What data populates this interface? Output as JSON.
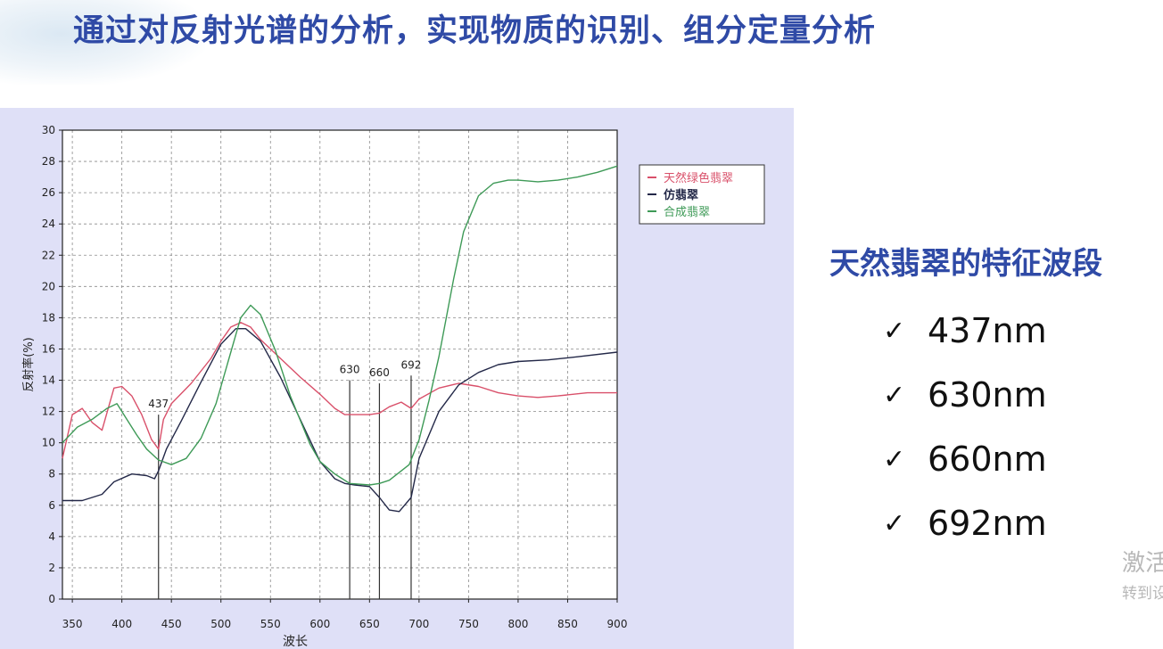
{
  "slide": {
    "title": "通过对反射光谱的分析，实现物质的识别、组分定量分析",
    "right_heading": "天然翡翠的特征波段",
    "bands": [
      {
        "check": "✓",
        "label": "437nm"
      },
      {
        "check": "✓",
        "label": "630nm"
      },
      {
        "check": "✓",
        "label": "660nm"
      },
      {
        "check": "✓",
        "label": "692nm"
      }
    ],
    "watermark_line1": "激活",
    "watermark_line2": "转到设"
  },
  "chart_data": {
    "type": "line",
    "xlabel": "波长",
    "ylabel": "反射率(%)",
    "xlim": [
      340,
      900
    ],
    "ylim": [
      0,
      30
    ],
    "xticks": [
      350,
      400,
      450,
      500,
      550,
      600,
      650,
      700,
      750,
      800,
      850,
      900
    ],
    "yticks": [
      0,
      2,
      4,
      6,
      8,
      10,
      12,
      14,
      16,
      18,
      20,
      22,
      24,
      26,
      28,
      30
    ],
    "grid": true,
    "legend_position": "top-right",
    "series": [
      {
        "name": "天然绿色翡翠",
        "color": "#d9506a",
        "points": [
          [
            340,
            9.0
          ],
          [
            350,
            11.8
          ],
          [
            360,
            12.2
          ],
          [
            370,
            11.3
          ],
          [
            380,
            10.8
          ],
          [
            392,
            13.5
          ],
          [
            400,
            13.6
          ],
          [
            410,
            13.0
          ],
          [
            420,
            11.8
          ],
          [
            430,
            10.2
          ],
          [
            437,
            9.6
          ],
          [
            442,
            11.5
          ],
          [
            450,
            12.5
          ],
          [
            470,
            13.8
          ],
          [
            490,
            15.4
          ],
          [
            500,
            16.5
          ],
          [
            510,
            17.4
          ],
          [
            520,
            17.7
          ],
          [
            530,
            17.4
          ],
          [
            540,
            16.6
          ],
          [
            560,
            15.4
          ],
          [
            580,
            14.2
          ],
          [
            600,
            13.1
          ],
          [
            615,
            12.2
          ],
          [
            625,
            11.8
          ],
          [
            635,
            11.8
          ],
          [
            650,
            11.8
          ],
          [
            660,
            11.9
          ],
          [
            670,
            12.3
          ],
          [
            682,
            12.6
          ],
          [
            692,
            12.2
          ],
          [
            700,
            12.8
          ],
          [
            720,
            13.5
          ],
          [
            740,
            13.8
          ],
          [
            760,
            13.6
          ],
          [
            780,
            13.2
          ],
          [
            800,
            13.0
          ],
          [
            820,
            12.9
          ],
          [
            840,
            13.0
          ],
          [
            870,
            13.2
          ],
          [
            900,
            13.2
          ]
        ]
      },
      {
        "name": "仿翡翠",
        "color": "#232848",
        "points": [
          [
            340,
            6.3
          ],
          [
            360,
            6.3
          ],
          [
            380,
            6.7
          ],
          [
            392,
            7.5
          ],
          [
            410,
            8.0
          ],
          [
            425,
            7.9
          ],
          [
            433,
            7.7
          ],
          [
            437,
            8.2
          ],
          [
            445,
            9.6
          ],
          [
            460,
            11.4
          ],
          [
            480,
            13.9
          ],
          [
            500,
            16.3
          ],
          [
            515,
            17.3
          ],
          [
            525,
            17.3
          ],
          [
            540,
            16.5
          ],
          [
            560,
            14.2
          ],
          [
            580,
            11.5
          ],
          [
            600,
            8.8
          ],
          [
            615,
            7.7
          ],
          [
            625,
            7.4
          ],
          [
            635,
            7.3
          ],
          [
            650,
            7.2
          ],
          [
            660,
            6.5
          ],
          [
            670,
            5.7
          ],
          [
            680,
            5.6
          ],
          [
            692,
            6.5
          ],
          [
            700,
            9.0
          ],
          [
            720,
            12.0
          ],
          [
            740,
            13.7
          ],
          [
            760,
            14.5
          ],
          [
            780,
            15.0
          ],
          [
            800,
            15.2
          ],
          [
            830,
            15.3
          ],
          [
            860,
            15.5
          ],
          [
            900,
            15.8
          ]
        ]
      },
      {
        "name": "合成翡翠",
        "color": "#3e9a57",
        "points": [
          [
            340,
            10.0
          ],
          [
            355,
            11.0
          ],
          [
            370,
            11.5
          ],
          [
            385,
            12.2
          ],
          [
            395,
            12.5
          ],
          [
            405,
            11.5
          ],
          [
            415,
            10.5
          ],
          [
            425,
            9.6
          ],
          [
            437,
            8.9
          ],
          [
            450,
            8.6
          ],
          [
            465,
            9.0
          ],
          [
            480,
            10.3
          ],
          [
            495,
            12.5
          ],
          [
            510,
            15.8
          ],
          [
            520,
            18.0
          ],
          [
            530,
            18.8
          ],
          [
            540,
            18.2
          ],
          [
            555,
            15.9
          ],
          [
            570,
            13.0
          ],
          [
            590,
            9.9
          ],
          [
            600,
            8.8
          ],
          [
            615,
            8.0
          ],
          [
            630,
            7.4
          ],
          [
            650,
            7.3
          ],
          [
            660,
            7.4
          ],
          [
            670,
            7.6
          ],
          [
            682,
            8.2
          ],
          [
            690,
            8.6
          ],
          [
            700,
            10.2
          ],
          [
            710,
            12.7
          ],
          [
            720,
            15.5
          ],
          [
            735,
            20.5
          ],
          [
            745,
            23.5
          ],
          [
            760,
            25.8
          ],
          [
            775,
            26.6
          ],
          [
            790,
            26.8
          ],
          [
            800,
            26.8
          ],
          [
            820,
            26.7
          ],
          [
            840,
            26.8
          ],
          [
            860,
            27.0
          ],
          [
            880,
            27.3
          ],
          [
            900,
            27.7
          ]
        ]
      }
    ],
    "markers": [
      {
        "x": 437,
        "label": "437",
        "top": 11.8
      },
      {
        "x": 630,
        "label": "630",
        "top": 14.0
      },
      {
        "x": 660,
        "label": "660",
        "top": 13.8
      },
      {
        "x": 692,
        "label": "692",
        "top": 14.3
      }
    ]
  }
}
